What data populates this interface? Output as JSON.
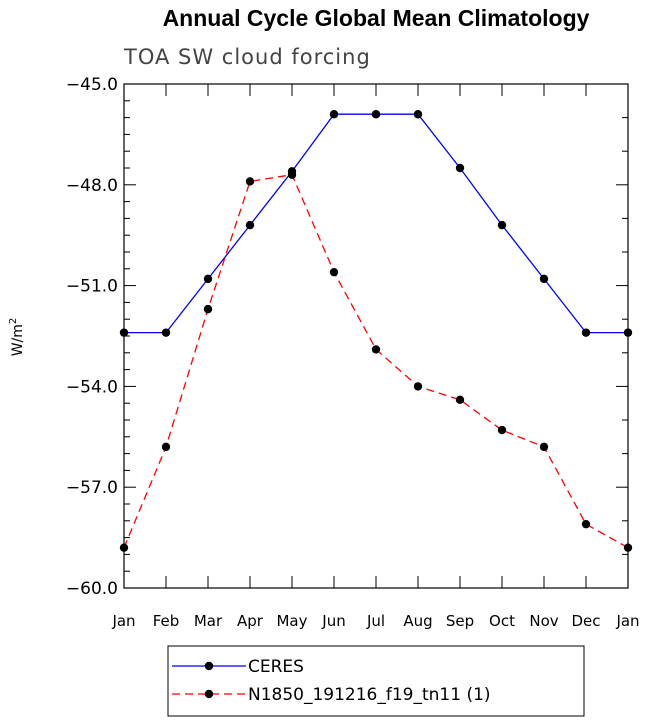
{
  "chart_data": {
    "type": "line",
    "title": "Annual Cycle Global Mean Climatology",
    "subtitle": "TOA SW cloud forcing",
    "ylabel": "W/m",
    "ylabel_sup": "2",
    "categories": [
      "Jan",
      "Feb",
      "Mar",
      "Apr",
      "May",
      "Jun",
      "Jul",
      "Aug",
      "Sep",
      "Oct",
      "Nov",
      "Dec",
      "Jan"
    ],
    "ylim": [
      -60.0,
      -45.0
    ],
    "yticks": [
      -60.0,
      -57.0,
      -54.0,
      -51.0,
      -48.0,
      -45.0
    ],
    "ytick_labels": [
      "−60.0",
      "−57.0",
      "−54.0",
      "−51.0",
      "−48.0",
      "−45.0"
    ],
    "grid": false,
    "legend_position": "bottom-center",
    "series": [
      {
        "name": "CERES",
        "color": "#0000ff",
        "dash": "solid",
        "values": [
          -52.4,
          -52.4,
          -50.8,
          -49.2,
          -47.6,
          -45.9,
          -45.9,
          -45.9,
          -47.5,
          -49.2,
          -50.8,
          -52.4,
          -52.4
        ]
      },
      {
        "name": "N1850_191216_f19_tn11 (1)",
        "color": "#ff0000",
        "dash": "dashed",
        "values": [
          -58.8,
          -55.8,
          -51.7,
          -47.9,
          -47.7,
          -50.6,
          -52.9,
          -54.0,
          -54.4,
          -55.3,
          -55.8,
          -58.1,
          -58.8
        ]
      }
    ]
  }
}
